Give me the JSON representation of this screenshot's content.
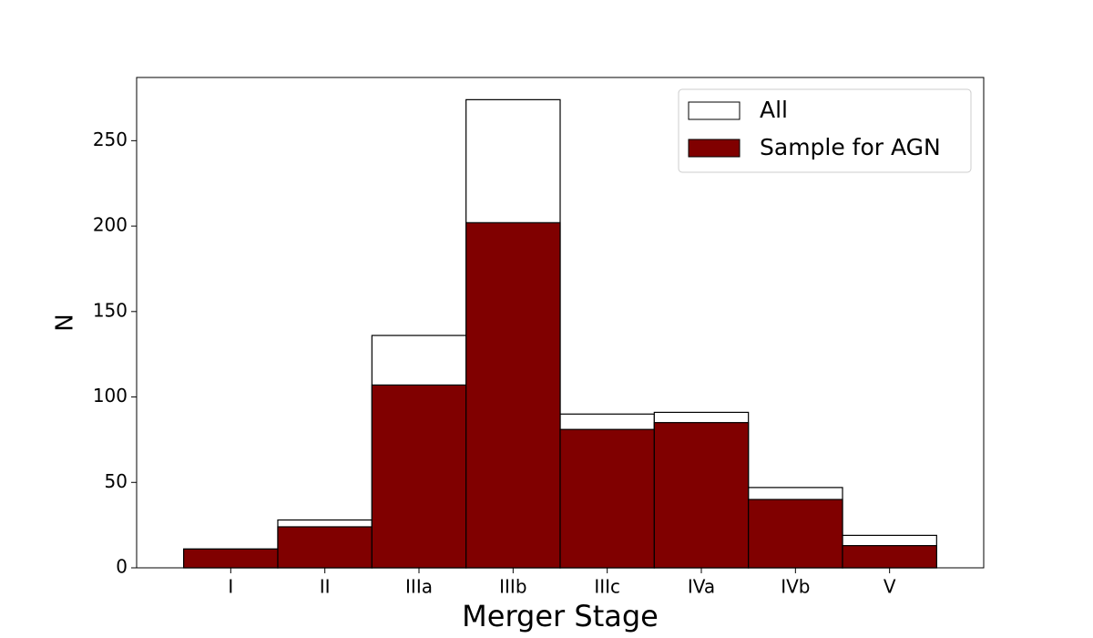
{
  "chart_data": {
    "type": "bar",
    "mode": "overlay",
    "xlabel": "Merger Stage",
    "ylabel": "N",
    "categories": [
      "I",
      "II",
      "IIIa",
      "IIIb",
      "IIIc",
      "IVa",
      "IVb",
      "V"
    ],
    "series": [
      {
        "name": "All",
        "color": "#ffffff",
        "edgecolor": "#000000",
        "values": [
          11,
          28,
          136,
          274,
          90,
          91,
          47,
          19
        ]
      },
      {
        "name": "Sample for AGN",
        "color": "#800000",
        "edgecolor": "#000000",
        "values": [
          11,
          24,
          107,
          202,
          81,
          85,
          40,
          13
        ]
      }
    ],
    "ylim": [
      0,
      287
    ],
    "yticks": [
      0,
      50,
      100,
      150,
      200,
      250
    ],
    "legend": "upper right",
    "grid": false
  }
}
